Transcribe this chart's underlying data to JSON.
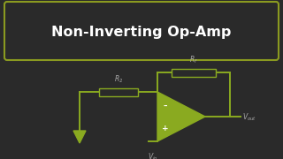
{
  "title": "Non-Inverting Op-Amp",
  "bg_color": "#2a2a2a",
  "box_border_color": "#8a9a20",
  "title_color": "#ffffff",
  "circuit_color": "#8aaa20",
  "wire_color": "#8aaa20",
  "text_color": "#aaaaaa",
  "title_fontsize": 11.5,
  "label_fontsize": 5.5
}
